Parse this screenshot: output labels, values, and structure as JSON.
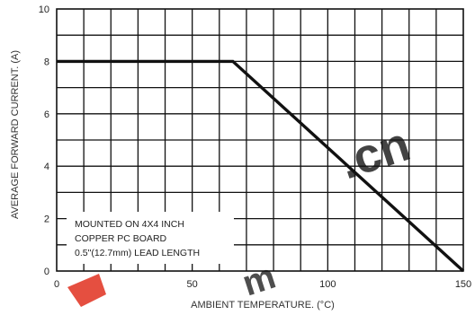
{
  "chart_data": {
    "type": "line",
    "title": "",
    "xlabel": "AMBIENT TEMPERATURE. (°C)",
    "ylabel": "AVERAGE FORWARD CURRENT. (A)",
    "xlim": [
      0,
      150
    ],
    "ylim": [
      0,
      10
    ],
    "x_ticks": [
      "0",
      "50",
      "100",
      "150"
    ],
    "y_ticks": [
      "0",
      "2",
      "4",
      "6",
      "8",
      "10"
    ],
    "x_gridlines": 15,
    "y_gridlines": 10,
    "grid": true,
    "series": [
      {
        "x": [
          0,
          65,
          150
        ],
        "y": [
          8,
          8,
          0
        ],
        "color": "#111111"
      }
    ],
    "annotations": [
      "MOUNTED ON 4X4 INCH",
      "COPPER PC BOARD",
      "0.5\"(12.7mm) LEAD LENGTH"
    ]
  },
  "watermark": {
    "text": ".cn",
    "color": "#e0301e"
  }
}
